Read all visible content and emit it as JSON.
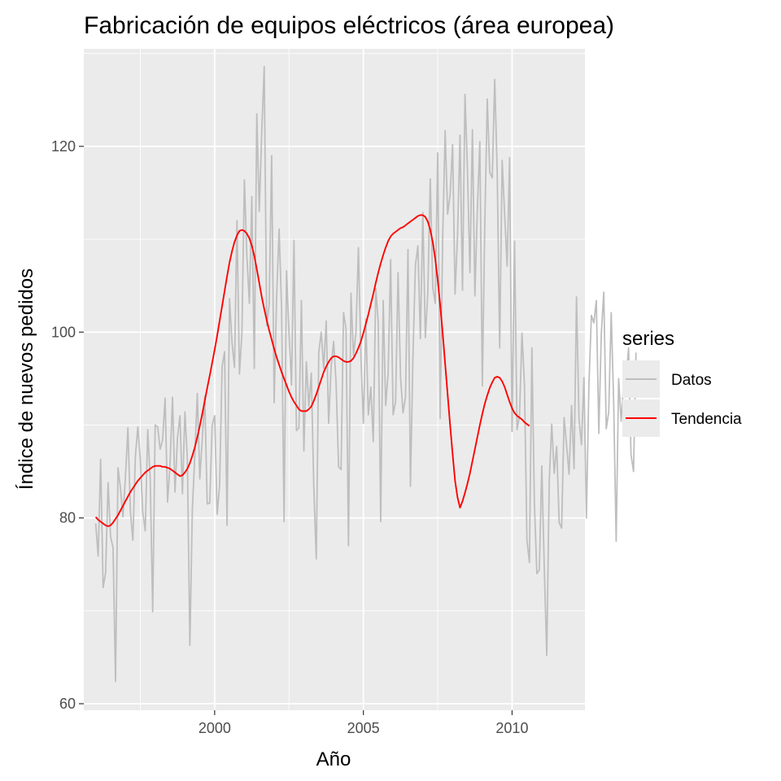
{
  "chart_data": {
    "type": "line",
    "title": "Fabricación de equipos eléctricos (área europea)",
    "xlabel": "Año",
    "ylabel": "Índice de nuevos pedidos",
    "xlim": [
      1995.6,
      2012.45
    ],
    "ylim": [
      59.3,
      130.5
    ],
    "x_ticks": [
      2000,
      2005,
      2010
    ],
    "x_tick_labels": [
      "2000",
      "2005",
      "2010"
    ],
    "y_ticks": [
      60,
      80,
      100,
      120
    ],
    "y_tick_labels": [
      "60",
      "80",
      "100",
      "120"
    ],
    "grid": true,
    "legend": {
      "title": "series",
      "position": "right",
      "entries": [
        {
          "label": "Datos",
          "color": "#bebebe"
        },
        {
          "label": "Tendencia",
          "color": "#ff0000"
        }
      ]
    },
    "x_start": 1996.0,
    "x_step": 0.08333333,
    "series": [
      {
        "name": "Datos",
        "color": "#bebebe",
        "values": [
          79.4,
          75.9,
          86.3,
          72.5,
          74.1,
          83.8,
          78.0,
          76.8,
          62.4,
          85.4,
          83.2,
          80.1,
          84.4,
          89.7,
          80.7,
          77.6,
          86.6,
          89.8,
          86.3,
          80.6,
          78.6,
          89.5,
          84.2,
          69.9,
          90.0,
          89.8,
          87.4,
          88.4,
          92.9,
          81.7,
          85.8,
          93.0,
          82.8,
          88.6,
          91.0,
          82.6,
          91.4,
          86.2,
          66.3,
          80.9,
          86.8,
          93.4,
          84.2,
          88.5,
          93.1,
          81.5,
          81.6,
          90.0,
          91.0,
          80.4,
          83.5,
          96.3,
          97.9,
          79.2,
          103.6,
          98.9,
          96.2,
          112.0,
          95.5,
          99.9,
          116.4,
          108.2,
          103.1,
          114.6,
          96.1,
          123.5,
          113.0,
          121.6,
          128.6,
          100.7,
          102.9,
          119.0,
          92.4,
          103.8,
          111.1,
          102.6,
          79.6,
          106.6,
          99.9,
          94.3,
          109.9,
          89.4,
          89.7,
          103.4,
          87.2,
          96.8,
          92.0,
          95.6,
          83.3,
          75.6,
          97.8,
          100.0,
          96.1,
          101.2,
          90.2,
          96.3,
          99.0,
          94.5,
          85.5,
          85.2,
          102.1,
          100.4,
          77.0,
          104.2,
          97.5,
          99.9,
          109.1,
          97.5,
          90.2,
          101.4,
          91.1,
          94.1,
          88.2,
          104.7,
          101.1,
          79.6,
          103.4,
          92.1,
          95.6,
          107.8,
          91.1,
          92.5,
          106.4,
          95.2,
          91.3,
          93.0,
          108.9,
          83.4,
          97.3,
          107.2,
          109.3,
          99.3,
          112.9,
          99.4,
          104.2,
          116.5,
          104.8,
          103.1,
          119.3,
          90.7,
          110.1,
          121.7,
          112.7,
          114.8,
          120.2,
          104.1,
          110.4,
          121.2,
          104.5,
          125.6,
          117.5,
          106.4,
          121.8,
          103.9,
          113.3,
          120.5,
          94.2,
          111.6,
          125.1,
          117.2,
          116.6,
          127.2,
          117.3,
          98.3,
          118.5,
          112.7,
          107.1,
          118.8,
          89.3,
          109.8,
          89.5,
          91.0,
          99.9,
          94.3,
          77.6,
          75.2,
          98.3,
          81.7,
          74.0,
          74.4,
          85.6,
          74.5,
          65.2,
          84.0,
          90.1,
          84.8,
          87.7,
          79.5,
          78.9,
          90.8,
          87.8,
          84.7,
          92.1,
          85.3,
          103.8,
          90.7,
          87.9,
          95.1,
          80.0,
          94.2,
          101.8,
          101.0,
          103.4,
          89.1,
          99.8,
          104.3,
          89.6,
          91.4,
          102.1,
          92.4,
          77.5,
          95.0,
          90.4,
          94.3,
          94.8,
          98.3,
          86.8,
          85.0,
          97.8
        ]
      },
      {
        "name": "Tendencia",
        "color": "#ff0000",
        "values": [
          80.1,
          79.8,
          79.6,
          79.4,
          79.2,
          79.1,
          79.2,
          79.5,
          79.9,
          80.3,
          80.8,
          81.3,
          81.8,
          82.3,
          82.8,
          83.2,
          83.6,
          84.0,
          84.3,
          84.6,
          84.9,
          85.1,
          85.3,
          85.5,
          85.6,
          85.6,
          85.6,
          85.5,
          85.5,
          85.4,
          85.3,
          85.1,
          84.9,
          84.7,
          84.5,
          84.6,
          84.9,
          85.3,
          85.9,
          86.7,
          87.6,
          88.7,
          89.9,
          91.2,
          92.6,
          94.0,
          95.3,
          96.7,
          98.1,
          99.6,
          101.2,
          102.8,
          104.4,
          106.0,
          107.5,
          108.7,
          109.7,
          110.4,
          110.9,
          111.0,
          110.9,
          110.6,
          110.1,
          109.3,
          108.2,
          106.8,
          105.3,
          103.8,
          102.5,
          101.3,
          100.2,
          99.2,
          98.2,
          97.3,
          96.5,
          95.7,
          95.0,
          94.3,
          93.6,
          93.0,
          92.5,
          92.1,
          91.7,
          91.5,
          91.5,
          91.5,
          91.7,
          92.0,
          92.6,
          93.3,
          94.1,
          94.9,
          95.7,
          96.3,
          96.8,
          97.2,
          97.4,
          97.4,
          97.3,
          97.1,
          96.9,
          96.8,
          96.8,
          96.9,
          97.2,
          97.7,
          98.3,
          99.0,
          99.9,
          100.9,
          101.9,
          103.0,
          104.1,
          105.3,
          106.4,
          107.4,
          108.3,
          109.1,
          109.8,
          110.3,
          110.6,
          110.8,
          111.0,
          111.2,
          111.3,
          111.5,
          111.7,
          111.9,
          112.1,
          112.3,
          112.5,
          112.6,
          112.6,
          112.4,
          111.9,
          111.0,
          109.7,
          107.9,
          105.6,
          102.9,
          99.9,
          96.6,
          93.3,
          90.0,
          86.9,
          84.0,
          82.2,
          81.1,
          81.8,
          82.7,
          83.7,
          84.8,
          86.1,
          87.4,
          88.7,
          90.0,
          91.2,
          92.3,
          93.2,
          94.0,
          94.6,
          95.1,
          95.2,
          95.1,
          94.7,
          94.1,
          93.3,
          92.5,
          91.8,
          91.3,
          91.0,
          90.8,
          90.6,
          90.3,
          90.1,
          89.9
        ]
      }
    ]
  }
}
